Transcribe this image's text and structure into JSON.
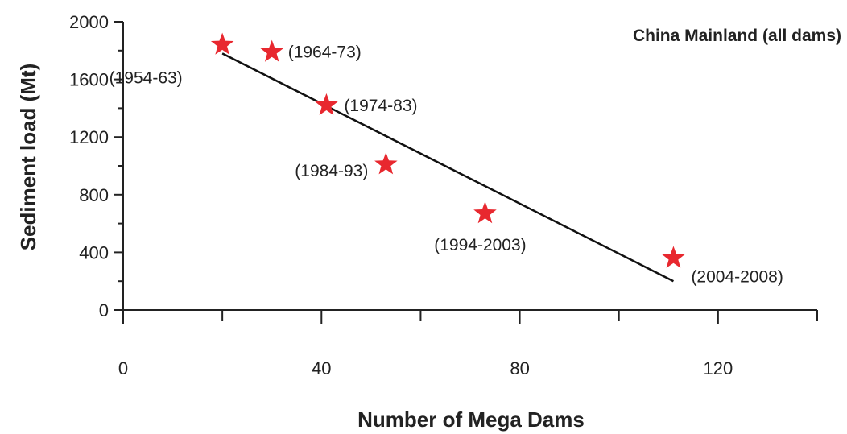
{
  "chart_data": {
    "type": "scatter",
    "title": "China Mainland (all dams)",
    "xlabel": "Number of Mega Dams",
    "ylabel": "Sediment load (Mt)",
    "xlim": [
      0,
      140
    ],
    "ylim": [
      0,
      2000
    ],
    "x_ticks": [
      0,
      40,
      80,
      120
    ],
    "y_ticks": [
      0,
      400,
      800,
      1200,
      1600,
      2000
    ],
    "grid": false,
    "marker": "star",
    "marker_color": "#e8282f",
    "points": [
      {
        "x": 20,
        "y": 1840,
        "label": "(1954-63)"
      },
      {
        "x": 30,
        "y": 1790,
        "label": "(1964-73)"
      },
      {
        "x": 41,
        "y": 1420,
        "label": "(1974-83)"
      },
      {
        "x": 53,
        "y": 1010,
        "label": "(1984-93)"
      },
      {
        "x": 73,
        "y": 670,
        "label": "(1994-2003)"
      },
      {
        "x": 111,
        "y": 360,
        "label": "(2004-2008)"
      }
    ],
    "trendline": {
      "x": [
        20,
        111
      ],
      "y": [
        1780,
        200
      ],
      "color": "#111111"
    }
  }
}
